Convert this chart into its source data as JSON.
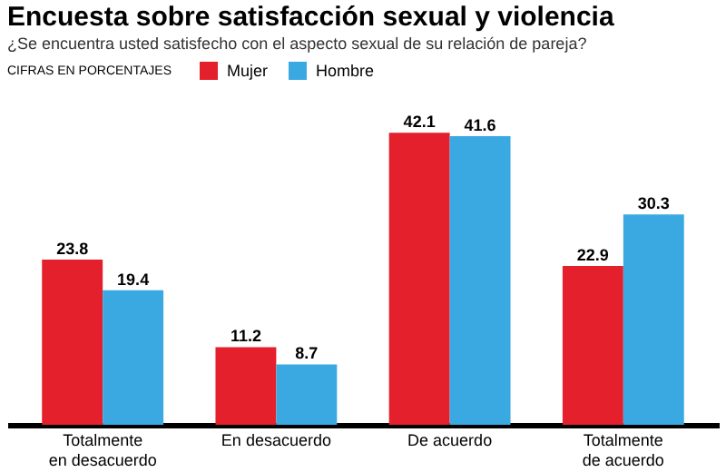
{
  "chart_data": {
    "type": "bar",
    "title": "Encuesta sobre satisfacción sexual y violencia",
    "subtitle": "¿Se encuentra usted satisfecho con el aspecto sexual de su relación de pareja?",
    "annotations": [
      "CIFRAS EN PORCENTAJES"
    ],
    "categories": [
      "Totalmente en desacuerdo",
      "En desacuerdo",
      "De acuerdo",
      "Totalmente de acuerdo"
    ],
    "series": [
      {
        "name": "Mujer",
        "color": "#e3202b",
        "values": [
          23.8,
          11.2,
          42.1,
          22.9
        ]
      },
      {
        "name": "Hombre",
        "color": "#3ba9e1",
        "values": [
          19.4,
          8.7,
          41.6,
          30.3
        ]
      }
    ],
    "data_labels": true,
    "legend": "top left"
  }
}
